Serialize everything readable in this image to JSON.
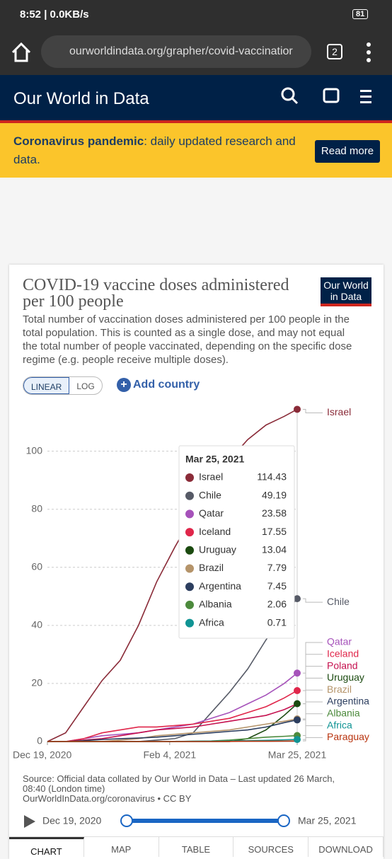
{
  "status_bar": {
    "time": "8:52 | 0.0KB/s",
    "battery": "81"
  },
  "browser": {
    "url": "ourworldindata.org/grapher/covid-vaccinatior",
    "tabs_count": "2"
  },
  "site": {
    "name": "Our World in Data"
  },
  "banner": {
    "bold": "Coronavirus pandemic",
    "text": ": daily updated research and data.",
    "button": "Read more"
  },
  "logo": {
    "line1": "Our World",
    "line2": "in Data"
  },
  "controls": {
    "linear": "LINEAR",
    "log": "LOG",
    "add": "Add country"
  },
  "chart_data": {
    "type": "line",
    "title": "COVID-19 vaccine doses administered per 100 people",
    "subtitle": "Total number of vaccination doses administered per 100 people in the total population. This is counted as a single dose, and may not equal the total number of people vaccinated, depending on the specific dose regime (e.g. people receive multiple doses).",
    "x": [
      "2020-12-19",
      "2020-12-26",
      "2021-01-02",
      "2021-01-09",
      "2021-01-16",
      "2021-01-23",
      "2021-01-30",
      "2021-02-06",
      "2021-02-13",
      "2021-02-20",
      "2021-02-27",
      "2021-03-06",
      "2021-03-13",
      "2021-03-20",
      "2021-03-25"
    ],
    "xlim": [
      "2020-12-19",
      "2021-03-25"
    ],
    "xticks": [
      {
        "value": "2020-12-19",
        "label": "Dec 19, 2020"
      },
      {
        "value": "2021-02-04",
        "label": "Feb 4, 2021"
      },
      {
        "value": "2021-03-25",
        "label": "Mar 25, 2021"
      }
    ],
    "ylim": [
      0,
      116
    ],
    "yticks": [
      0,
      20,
      40,
      60,
      80,
      100
    ],
    "grid": true,
    "series": [
      {
        "name": "Israel",
        "color": "#8a2b38",
        "values": [
          0,
          3,
          12,
          21,
          28,
          40,
          55,
          67,
          78,
          88,
          97,
          104,
          109,
          112,
          114.43
        ]
      },
      {
        "name": "Chile",
        "color": "#565a66",
        "values": [
          0,
          0,
          0,
          0,
          0,
          0,
          0.5,
          1,
          3,
          10,
          17,
          25,
          35,
          44,
          49.19
        ]
      },
      {
        "name": "Qatar",
        "color": "#a652ba",
        "values": [
          0,
          0,
          1,
          2,
          2.5,
          3,
          4,
          5,
          6,
          8,
          10,
          13,
          16,
          20,
          23.58
        ]
      },
      {
        "name": "Iceland",
        "color": "#e0264a",
        "values": [
          0,
          0,
          1,
          3,
          4,
          5,
          5,
          5.5,
          6,
          7,
          8,
          10,
          12,
          15,
          17.55
        ]
      },
      {
        "name": "Poland",
        "color": "#c5114f",
        "values": [
          0,
          0,
          0.5,
          1,
          2,
          3,
          4,
          4.5,
          5,
          6,
          7,
          8,
          9,
          11,
          13
        ]
      },
      {
        "name": "Uruguay",
        "color": "#1b4a10",
        "values": [
          0,
          0,
          0,
          0,
          0,
          0,
          0,
          0,
          0,
          0,
          0,
          1,
          4,
          9,
          13.04
        ]
      },
      {
        "name": "Brazil",
        "color": "#b5946a",
        "values": [
          0,
          0,
          0,
          0,
          0.5,
          1,
          2,
          2.5,
          3,
          3.5,
          4,
          5,
          6,
          7,
          7.79
        ]
      },
      {
        "name": "Argentina",
        "color": "#2c3e5f",
        "values": [
          0,
          0,
          0.3,
          0.7,
          1,
          1.2,
          1.5,
          2,
          2.5,
          3,
          3.5,
          4,
          5,
          6.5,
          7.45
        ]
      },
      {
        "name": "Albania",
        "color": "#4c8a3c",
        "values": [
          0,
          0,
          0,
          0,
          0,
          0,
          0,
          0,
          0.1,
          0.2,
          0.5,
          1,
          1.5,
          1.8,
          2.06
        ]
      },
      {
        "name": "Africa",
        "color": "#109494",
        "values": [
          0,
          0,
          0,
          0,
          0,
          0,
          0,
          0.05,
          0.1,
          0.15,
          0.2,
          0.3,
          0.4,
          0.6,
          0.71
        ]
      },
      {
        "name": "Paraguay",
        "color": "#b8330e",
        "values": [
          0,
          0,
          0,
          0,
          0,
          0,
          0,
          0,
          0,
          0,
          0.05,
          0.1,
          0.1,
          0.15,
          0.2
        ]
      }
    ]
  },
  "source": {
    "line1": "Source: Official data collated by Our World in Data – Last updated 26 March, 08:40 (London time)",
    "line2": "OurWorldInData.org/coronavirus • CC BY"
  },
  "tabs": [
    "CHART",
    "MAP",
    "TABLE",
    "SOURCES",
    "DOWNLOAD"
  ]
}
